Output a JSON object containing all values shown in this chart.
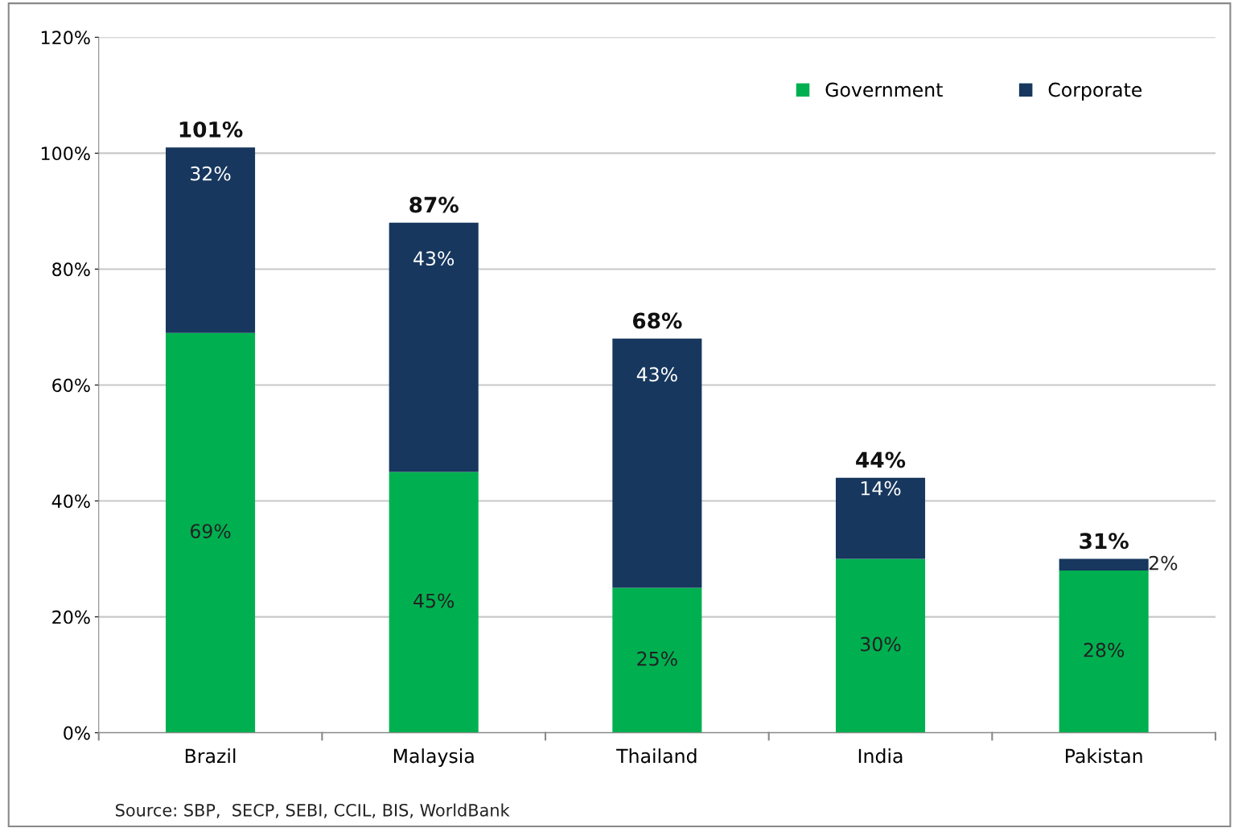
{
  "chart_data": {
    "type": "bar",
    "stacked": true,
    "categories": [
      "Brazil",
      "Malaysia",
      "Thailand",
      "India",
      "Pakistan"
    ],
    "series": [
      {
        "name": "Government",
        "color": "#00b050",
        "values": [
          69,
          45,
          25,
          30,
          28
        ],
        "value_labels": [
          "69%",
          "45%",
          "25%",
          "30%",
          "28%"
        ]
      },
      {
        "name": "Corporate",
        "color": "#17375e",
        "values": [
          32,
          43,
          43,
          14,
          2
        ],
        "value_labels": [
          "32%",
          "43%",
          "43%",
          "14%",
          "2%"
        ]
      }
    ],
    "totals": [
      "101%",
      "87%",
      "68%",
      "44%",
      "31%"
    ],
    "ylim": [
      0,
      120
    ],
    "yticks": [
      {
        "value": 0,
        "label": "0%"
      },
      {
        "value": 20,
        "label": "20%"
      },
      {
        "value": 40,
        "label": "40%"
      },
      {
        "value": 60,
        "label": "60%"
      },
      {
        "value": 80,
        "label": "80%"
      },
      {
        "value": 100,
        "label": "100%"
      },
      {
        "value": 120,
        "label": "120%"
      }
    ],
    "grid": "y",
    "legend": "top right",
    "annotations": [
      "Source: SBP,  SECP, SEBI, CCIL, BIS, WorldBank"
    ]
  }
}
